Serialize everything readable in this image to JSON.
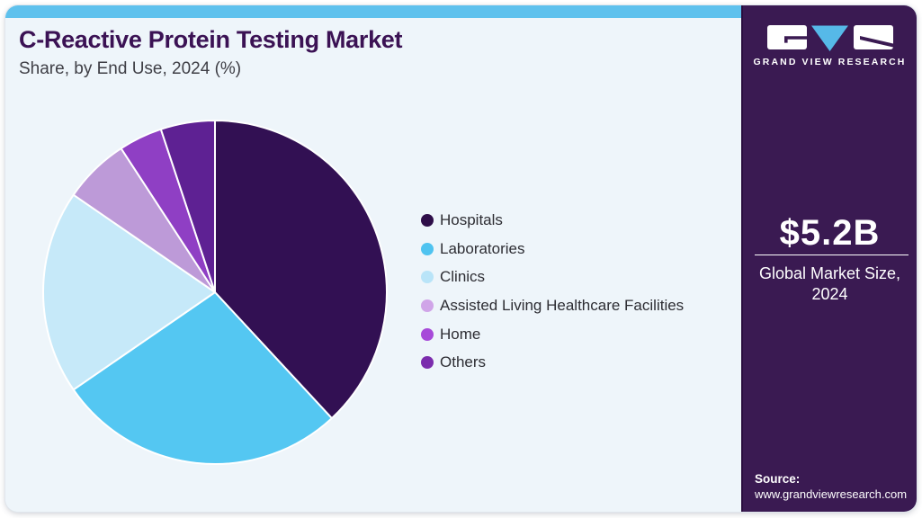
{
  "header": {
    "title": "C-Reactive Protein Testing Market",
    "subtitle": "Share, by End Use, 2024 (%)"
  },
  "chart_data": {
    "type": "pie",
    "title": "C-Reactive Protein Testing Market Share, by End Use, 2024 (%)",
    "start_angle_deg": 0,
    "direction": "clockwise",
    "legend_position": "right",
    "segments": [
      {
        "label": "Hospitals",
        "value_pct": 38.1,
        "color": "#321053",
        "legend_color": "#2e0e49"
      },
      {
        "label": "Laboratories",
        "value_pct": 27.3,
        "color": "#54c7f2",
        "legend_color": "#4fc3f0"
      },
      {
        "label": "Clinics",
        "value_pct": 19.2,
        "color": "#c6e9f9",
        "legend_color": "#b9e4f8"
      },
      {
        "label": "Assisted Living Healthcare Facilities",
        "value_pct": 6.2,
        "color": "#bd9ad8",
        "legend_color": "#d0a5e8"
      },
      {
        "label": "Home",
        "value_pct": 4.1,
        "color": "#8f3fc4",
        "legend_color": "#a74ad9"
      },
      {
        "label": "Others",
        "value_pct": 5.1,
        "color": "#5e2193",
        "legend_color": "#7b2cad"
      }
    ]
  },
  "sidebar": {
    "logo_text": "GRAND VIEW RESEARCH",
    "market_size_value": "$5.2B",
    "market_size_label": "Global Market Size, 2024",
    "source_label": "Source:",
    "source_url": "www.grandviewresearch.com"
  },
  "colors": {
    "accent_bar": "#5ec1ed",
    "card_bg": "#eef5fa",
    "sidebar_bg": "#3a1a52",
    "title": "#3b1254",
    "subtitle": "#3f3f46",
    "legend_text": "#2d2d33",
    "logo_triangle": "#56b9e8",
    "pie_separator": "#ffffff"
  }
}
